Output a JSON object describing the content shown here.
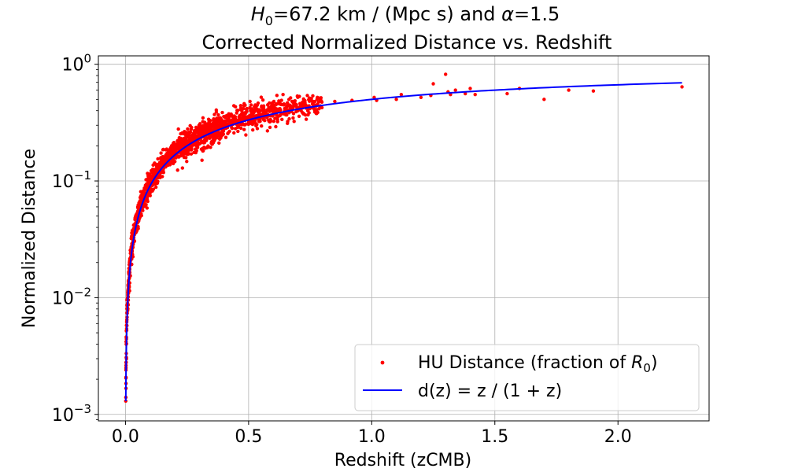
{
  "chart_data": {
    "type": "scatter",
    "title": {
      "line1_italic_symbol": "H",
      "line1_subscript": "0",
      "line1_rest_a": "=67.2 km / (Mpc s)  and ",
      "line1_alpha": "α",
      "line1_rest_b": "=1.5",
      "line2": "Corrected Normalized Distance vs. Redshift"
    },
    "xlabel": "Redshift (zCMB)",
    "ylabel": "Normalized Distance",
    "xlim": [
      -0.11,
      2.37
    ],
    "ylim": [
      0.00088,
      1.18
    ],
    "yscale": "log",
    "grid": true,
    "x_ticks": [
      {
        "value": 0.0,
        "label": "0.0"
      },
      {
        "value": 0.5,
        "label": "0.5"
      },
      {
        "value": 1.0,
        "label": "1.0"
      },
      {
        "value": 1.5,
        "label": "1.5"
      },
      {
        "value": 2.0,
        "label": "2.0"
      }
    ],
    "y_ticks": [
      {
        "value": 0.001,
        "base": "10",
        "exp": "−3"
      },
      {
        "value": 0.01,
        "base": "10",
        "exp": "−2"
      },
      {
        "value": 0.1,
        "base": "10",
        "exp": "−1"
      },
      {
        "value": 1.0,
        "base": "10",
        "exp": "0"
      }
    ],
    "legend": {
      "placement": "lower right",
      "entries": [
        {
          "label_main": "HU Distance (fraction of ",
          "label_italic": "R",
          "label_sub": "0",
          "label_end": ")",
          "marker": "scatter"
        },
        {
          "label": "d(z) = z / (1 + z)",
          "marker": "line"
        }
      ]
    },
    "series": [
      {
        "name": "HU Distance (fraction of R0)",
        "kind": "scatter",
        "color": "#ff0000",
        "points": [
          [
            0.0012,
            0.0013
          ],
          [
            0.0015,
            0.0014
          ],
          [
            0.002,
            0.0024
          ],
          [
            0.0022,
            0.0025
          ],
          [
            0.0025,
            0.0042
          ],
          [
            0.003,
            0.0046
          ],
          [
            0.0035,
            0.0052
          ],
          [
            0.004,
            0.0058
          ],
          [
            0.005,
            0.0062
          ],
          [
            0.006,
            0.0074
          ],
          [
            0.007,
            0.0087
          ],
          [
            0.008,
            0.0098
          ],
          [
            0.009,
            0.011
          ],
          [
            0.01,
            0.0115
          ],
          [
            0.012,
            0.014
          ],
          [
            0.014,
            0.016
          ],
          [
            0.016,
            0.018
          ],
          [
            0.018,
            0.021
          ],
          [
            0.02,
            0.024
          ],
          [
            0.022,
            0.026
          ],
          [
            0.024,
            0.027
          ],
          [
            0.026,
            0.029
          ],
          [
            0.028,
            0.033
          ],
          [
            0.03,
            0.036
          ],
          [
            0.033,
            0.039
          ],
          [
            0.036,
            0.042
          ],
          [
            0.04,
            0.048
          ],
          [
            0.045,
            0.052
          ],
          [
            0.05,
            0.06
          ],
          [
            0.055,
            0.065
          ],
          [
            0.06,
            0.072
          ],
          [
            0.065,
            0.075
          ],
          [
            0.07,
            0.078
          ],
          [
            0.08,
            0.086
          ],
          [
            0.09,
            0.095
          ],
          [
            0.1,
            0.105
          ],
          [
            0.11,
            0.118
          ],
          [
            0.12,
            0.125
          ],
          [
            0.13,
            0.135
          ],
          [
            0.14,
            0.142
          ],
          [
            0.15,
            0.15
          ],
          [
            0.16,
            0.158
          ],
          [
            0.17,
            0.165
          ],
          [
            0.18,
            0.172
          ],
          [
            0.19,
            0.178
          ],
          [
            0.2,
            0.185
          ],
          [
            0.21,
            0.19
          ],
          [
            0.22,
            0.2
          ],
          [
            0.23,
            0.205
          ],
          [
            0.24,
            0.21
          ],
          [
            0.25,
            0.218
          ],
          [
            0.26,
            0.224
          ],
          [
            0.27,
            0.23
          ],
          [
            0.28,
            0.236
          ],
          [
            0.3,
            0.245
          ],
          [
            0.32,
            0.258
          ],
          [
            0.34,
            0.268
          ],
          [
            0.36,
            0.276
          ],
          [
            0.38,
            0.285
          ],
          [
            0.4,
            0.295
          ],
          [
            0.42,
            0.3
          ],
          [
            0.44,
            0.31
          ],
          [
            0.46,
            0.318
          ],
          [
            0.5,
            0.33
          ],
          [
            0.55,
            0.35
          ],
          [
            0.6,
            0.37
          ],
          [
            0.65,
            0.38
          ],
          [
            0.7,
            0.4
          ],
          [
            0.75,
            0.42
          ],
          [
            0.78,
            0.45
          ],
          [
            0.85,
            0.48
          ],
          [
            0.92,
            0.49
          ],
          [
            1.01,
            0.52
          ],
          [
            1.02,
            0.49
          ],
          [
            1.1,
            0.5
          ],
          [
            1.12,
            0.55
          ],
          [
            1.2,
            0.52
          ],
          [
            1.24,
            0.54
          ],
          [
            1.25,
            0.68
          ],
          [
            1.3,
            0.82
          ],
          [
            1.31,
            0.58
          ],
          [
            1.32,
            0.55
          ],
          [
            1.34,
            0.6
          ],
          [
            1.38,
            0.56
          ],
          [
            1.4,
            0.62
          ],
          [
            1.42,
            0.55
          ],
          [
            1.55,
            0.56
          ],
          [
            1.6,
            0.62
          ],
          [
            1.7,
            0.5
          ],
          [
            1.8,
            0.6
          ],
          [
            1.9,
            0.59
          ],
          [
            2.26,
            0.64
          ]
        ],
        "dense_cloud": {
          "x_range": [
            0.002,
            0.8
          ],
          "approximate_count": 1500,
          "scatter_about_curve_dex": 0.09,
          "note": "dense band of points clustered around the d(z) curve"
        }
      },
      {
        "name": "d(z) = z / (1 + z)",
        "kind": "line",
        "color": "#0000ff",
        "formula": "z/(1+z)",
        "x_range": [
          0.0013,
          2.26
        ]
      }
    ]
  },
  "colors": {
    "scatter": "#ff0000",
    "curve": "#0000ff",
    "grid": "#b0b0b0",
    "axes": "#000000",
    "legend_border": "#cccccc"
  }
}
